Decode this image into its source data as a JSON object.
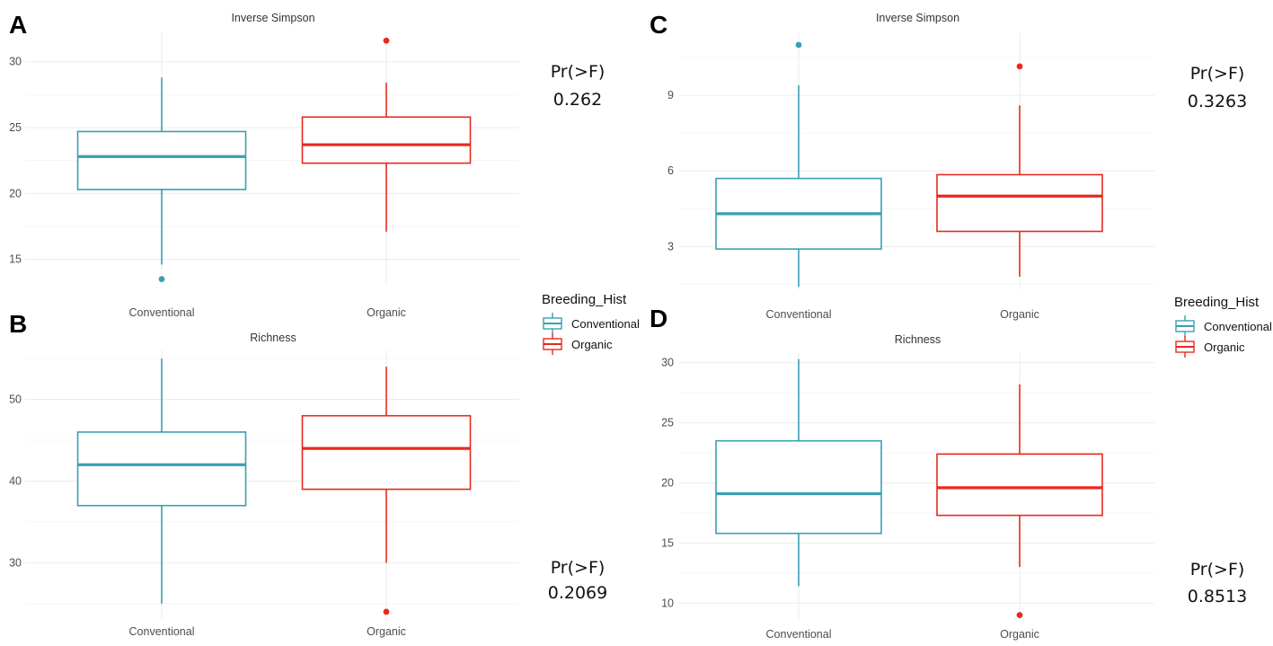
{
  "colors": {
    "Conventional": "#3a9fb5",
    "Organic": "#e8291c"
  },
  "legend": {
    "title": "Breeding_Hist",
    "items": [
      "Conventional",
      "Organic"
    ]
  },
  "chart_data": [
    {
      "type": "boxplot",
      "panel": "A",
      "title": "Inverse Simpson",
      "categories": [
        "Conventional",
        "Organic"
      ],
      "ylim": [
        13.2,
        32.3
      ],
      "yticks": [
        15,
        20,
        25,
        30
      ],
      "stat_label": "Pr(>F)",
      "stat_value": "0.262",
      "boxes": [
        {
          "group": "Conventional",
          "min": 14.6,
          "q1": 20.3,
          "median": 22.8,
          "q3": 24.7,
          "max": 28.8,
          "outliers": [
            13.5
          ]
        },
        {
          "group": "Organic",
          "min": 17.1,
          "q1": 22.3,
          "median": 23.7,
          "q3": 25.8,
          "max": 28.4,
          "outliers": [
            31.6
          ]
        }
      ]
    },
    {
      "type": "boxplot",
      "panel": "B",
      "title": "Richness",
      "categories": [
        "Conventional",
        "Organic"
      ],
      "ylim": [
        23.0,
        56.0
      ],
      "yticks": [
        30,
        40,
        50
      ],
      "stat_label": "Pr(>F)",
      "stat_value": "0.2069",
      "boxes": [
        {
          "group": "Conventional",
          "min": 25,
          "q1": 37,
          "median": 42,
          "q3": 46,
          "max": 55,
          "outliers": []
        },
        {
          "group": "Organic",
          "min": 30,
          "q1": 39,
          "median": 44,
          "q3": 48,
          "max": 54,
          "outliers": [
            24
          ]
        }
      ]
    },
    {
      "type": "boxplot",
      "panel": "C",
      "title": "Inverse Simpson",
      "categories": [
        "Conventional",
        "Organic"
      ],
      "ylim": [
        1.3,
        11.5
      ],
      "yticks": [
        3,
        6,
        9
      ],
      "stat_label": "Pr(>F)",
      "stat_value": "0.3263",
      "boxes": [
        {
          "group": "Conventional",
          "min": 1.4,
          "q1": 2.9,
          "median": 4.3,
          "q3": 5.7,
          "max": 9.4,
          "outliers": [
            11.0
          ]
        },
        {
          "group": "Organic",
          "min": 1.8,
          "q1": 3.6,
          "median": 5.0,
          "q3": 5.85,
          "max": 8.6,
          "outliers": [
            10.15
          ]
        }
      ]
    },
    {
      "type": "boxplot",
      "panel": "D",
      "title": "Richness",
      "categories": [
        "Conventional",
        "Organic"
      ],
      "ylim": [
        8.6,
        30.8
      ],
      "yticks": [
        10,
        15,
        20,
        25,
        30
      ],
      "stat_label": "Pr(>F)",
      "stat_value": "0.8513",
      "boxes": [
        {
          "group": "Conventional",
          "min": 11.4,
          "q1": 15.8,
          "median": 19.1,
          "q3": 23.5,
          "max": 30.3,
          "outliers": []
        },
        {
          "group": "Organic",
          "min": 13.0,
          "q1": 17.3,
          "median": 19.6,
          "q3": 22.4,
          "max": 28.2,
          "outliers": [
            9.0
          ]
        }
      ]
    }
  ]
}
